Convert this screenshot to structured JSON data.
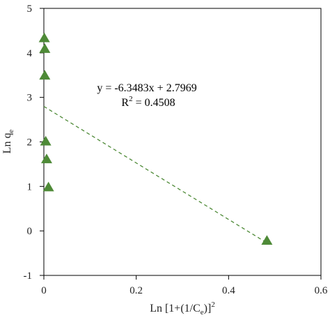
{
  "chart_data": {
    "type": "scatter",
    "title": "",
    "xlabel": {
      "main": "Ln [1+(1/C",
      "sub": "e",
      "tail": ")]",
      "sup": "2"
    },
    "ylabel": {
      "main": "Ln q",
      "sub": "e"
    },
    "xlim": [
      0,
      0.6
    ],
    "ylim": [
      -1,
      5
    ],
    "xticks": [
      0,
      0.2,
      0.4,
      0.6
    ],
    "yticks": [
      -1,
      0,
      1,
      2,
      3,
      4,
      5
    ],
    "xtick_labels": [
      "0",
      "0.2",
      "0.4",
      "0.6"
    ],
    "ytick_labels": [
      "-1",
      "0",
      "1",
      "2",
      "3",
      "4",
      "5"
    ],
    "grid": false,
    "legend": "none",
    "series": [
      {
        "marker": "triangle",
        "color": "#4e8a37",
        "points": [
          {
            "x": 0.001,
            "y": 4.33
          },
          {
            "x": 0.002,
            "y": 4.09
          },
          {
            "x": 0.002,
            "y": 3.49
          },
          {
            "x": 0.004,
            "y": 2.01
          },
          {
            "x": 0.006,
            "y": 1.61
          },
          {
            "x": 0.01,
            "y": 0.98
          },
          {
            "x": 0.483,
            "y": -0.22
          }
        ]
      }
    ],
    "trendline": {
      "slope": -6.3483,
      "intercept": 2.7969,
      "x_range": [
        0,
        0.483
      ],
      "style": "dashed",
      "color": "#4e8a37"
    },
    "annotations": {
      "equation": "y = -6.3483x + 2.7969",
      "r2_prefix": "R",
      "r2_sup": "2",
      "r2_value": " = 0.4508",
      "color": "#4e8a37"
    }
  }
}
